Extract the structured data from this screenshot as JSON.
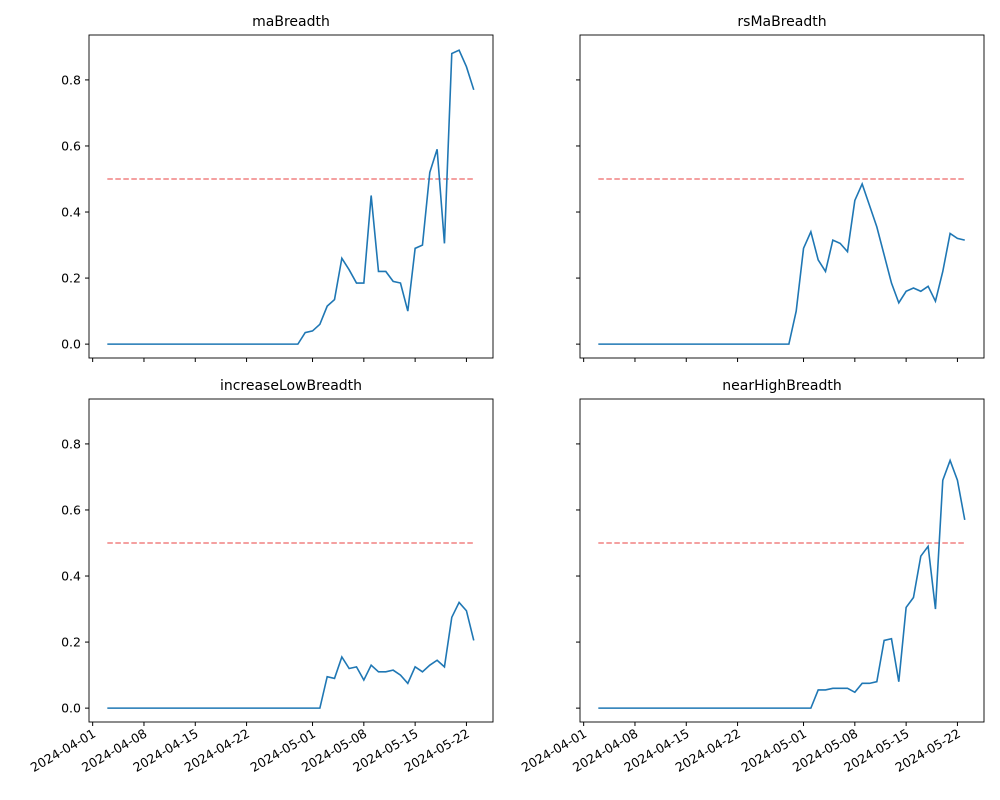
{
  "chart_data": [
    {
      "type": "line",
      "title": "maBreadth",
      "x": [
        "2024-04-03",
        "2024-04-04",
        "2024-04-05",
        "2024-04-06",
        "2024-04-07",
        "2024-04-08",
        "2024-04-09",
        "2024-04-10",
        "2024-04-11",
        "2024-04-12",
        "2024-04-13",
        "2024-04-14",
        "2024-04-15",
        "2024-04-16",
        "2024-04-17",
        "2024-04-18",
        "2024-04-19",
        "2024-04-20",
        "2024-04-21",
        "2024-04-22",
        "2024-04-23",
        "2024-04-24",
        "2024-04-25",
        "2024-04-26",
        "2024-04-27",
        "2024-04-28",
        "2024-04-29",
        "2024-04-30",
        "2024-05-01",
        "2024-05-02",
        "2024-05-03",
        "2024-05-04",
        "2024-05-05",
        "2024-05-06",
        "2024-05-07",
        "2024-05-08",
        "2024-05-09",
        "2024-05-10",
        "2024-05-11",
        "2024-05-12",
        "2024-05-13",
        "2024-05-14",
        "2024-05-15",
        "2024-05-16",
        "2024-05-17",
        "2024-05-18",
        "2024-05-19",
        "2024-05-20",
        "2024-05-21",
        "2024-05-22",
        "2024-05-23"
      ],
      "series": [
        {
          "color": "#1f77b4",
          "values": [
            0,
            0,
            0,
            0,
            0,
            0,
            0,
            0,
            0,
            0,
            0,
            0,
            0,
            0,
            0,
            0,
            0,
            0,
            0,
            0,
            0,
            0,
            0,
            0,
            0,
            0,
            0,
            0.035,
            0.04,
            0.06,
            0.115,
            0.135,
            0.26,
            0.225,
            0.185,
            0.185,
            0.45,
            0.22,
            0.22,
            0.19,
            0.185,
            0.1,
            0.29,
            0.3,
            0.52,
            0.59,
            0.305,
            0.88,
            0.89,
            0.84,
            0.77
          ]
        }
      ],
      "hline": {
        "value": 0.5,
        "color": "#f08080",
        "from": "2024-04-03",
        "to": "2024-05-23"
      },
      "xlim": [
        "2024-03-31T12:00",
        "2024-05-25T15:00"
      ],
      "xticks": [
        "2024-04-01",
        "2024-04-08",
        "2024-04-15",
        "2024-04-22",
        "2024-05-01",
        "2024-05-08",
        "2024-05-15",
        "2024-05-22"
      ],
      "ylim": [
        -0.042,
        0.936
      ],
      "yticks": [
        {
          "value": 0,
          "label": "0.0"
        },
        0.2,
        0.4,
        0.6,
        0.8
      ]
    },
    {
      "type": "line",
      "title": "rsMaBreadth",
      "x": [
        "2024-04-03",
        "2024-04-04",
        "2024-04-05",
        "2024-04-06",
        "2024-04-07",
        "2024-04-08",
        "2024-04-09",
        "2024-04-10",
        "2024-04-11",
        "2024-04-12",
        "2024-04-13",
        "2024-04-14",
        "2024-04-15",
        "2024-04-16",
        "2024-04-17",
        "2024-04-18",
        "2024-04-19",
        "2024-04-20",
        "2024-04-21",
        "2024-04-22",
        "2024-04-23",
        "2024-04-24",
        "2024-04-25",
        "2024-04-26",
        "2024-04-27",
        "2024-04-28",
        "2024-04-29",
        "2024-04-30",
        "2024-05-01",
        "2024-05-02",
        "2024-05-03",
        "2024-05-04",
        "2024-05-05",
        "2024-05-06",
        "2024-05-07",
        "2024-05-08",
        "2024-05-09",
        "2024-05-10",
        "2024-05-11",
        "2024-05-12",
        "2024-05-13",
        "2024-05-14",
        "2024-05-15",
        "2024-05-16",
        "2024-05-17",
        "2024-05-18",
        "2024-05-19",
        "2024-05-20",
        "2024-05-21",
        "2024-05-22",
        "2024-05-23"
      ],
      "series": [
        {
          "color": "#1f77b4",
          "values": [
            0,
            0,
            0,
            0,
            0,
            0,
            0,
            0,
            0,
            0,
            0,
            0,
            0,
            0,
            0,
            0,
            0,
            0,
            0,
            0,
            0,
            0,
            0,
            0,
            0,
            0,
            0,
            0.1,
            0.29,
            0.34,
            0.255,
            0.22,
            0.315,
            0.305,
            0.28,
            0.435,
            0.485,
            0.42,
            0.355,
            0.27,
            0.185,
            0.125,
            0.16,
            0.17,
            0.16,
            0.175,
            0.13,
            0.22,
            0.335,
            0.32,
            0.315
          ]
        }
      ],
      "hline": {
        "value": 0.5,
        "color": "#f08080",
        "from": "2024-04-03",
        "to": "2024-05-23"
      },
      "xlim": [
        "2024-03-31T12:00",
        "2024-05-25T15:00"
      ],
      "xticks": [
        "2024-04-01",
        "2024-04-08",
        "2024-04-15",
        "2024-04-22",
        "2024-05-01",
        "2024-05-08",
        "2024-05-15",
        "2024-05-22"
      ],
      "ylim": [
        -0.042,
        0.936
      ],
      "yticks": [
        0,
        0.2,
        0.4,
        0.6,
        0.8
      ]
    },
    {
      "type": "line",
      "title": "increaseLowBreadth",
      "x": [
        "2024-04-03",
        "2024-04-04",
        "2024-04-05",
        "2024-04-06",
        "2024-04-07",
        "2024-04-08",
        "2024-04-09",
        "2024-04-10",
        "2024-04-11",
        "2024-04-12",
        "2024-04-13",
        "2024-04-14",
        "2024-04-15",
        "2024-04-16",
        "2024-04-17",
        "2024-04-18",
        "2024-04-19",
        "2024-04-20",
        "2024-04-21",
        "2024-04-22",
        "2024-04-23",
        "2024-04-24",
        "2024-04-25",
        "2024-04-26",
        "2024-04-27",
        "2024-04-28",
        "2024-04-29",
        "2024-04-30",
        "2024-05-01",
        "2024-05-02",
        "2024-05-03",
        "2024-05-04",
        "2024-05-05",
        "2024-05-06",
        "2024-05-07",
        "2024-05-08",
        "2024-05-09",
        "2024-05-10",
        "2024-05-11",
        "2024-05-12",
        "2024-05-13",
        "2024-05-14",
        "2024-05-15",
        "2024-05-16",
        "2024-05-17",
        "2024-05-18",
        "2024-05-19",
        "2024-05-20",
        "2024-05-21",
        "2024-05-22",
        "2024-05-23"
      ],
      "series": [
        {
          "color": "#1f77b4",
          "values": [
            0,
            0,
            0,
            0,
            0,
            0,
            0,
            0,
            0,
            0,
            0,
            0,
            0,
            0,
            0,
            0,
            0,
            0,
            0,
            0,
            0,
            0,
            0,
            0,
            0,
            0,
            0,
            0,
            0,
            0,
            0.095,
            0.09,
            0.155,
            0.12,
            0.125,
            0.085,
            0.13,
            0.11,
            0.11,
            0.115,
            0.1,
            0.075,
            0.125,
            0.11,
            0.13,
            0.145,
            0.125,
            0.275,
            0.32,
            0.295,
            0.205
          ]
        }
      ],
      "hline": {
        "value": 0.5,
        "color": "#f08080",
        "from": "2024-04-03",
        "to": "2024-05-23"
      },
      "xlim": [
        "2024-03-31T12:00",
        "2024-05-25T15:00"
      ],
      "xticks": [
        "2024-04-01",
        "2024-04-08",
        "2024-04-15",
        "2024-04-22",
        "2024-05-01",
        "2024-05-08",
        "2024-05-15",
        "2024-05-22"
      ],
      "ylim": [
        -0.042,
        0.936
      ],
      "yticks": [
        {
          "value": 0,
          "label": "0.0"
        },
        0.2,
        0.4,
        0.6,
        0.8
      ]
    },
    {
      "type": "line",
      "title": "nearHighBreadth",
      "x": [
        "2024-04-03",
        "2024-04-04",
        "2024-04-05",
        "2024-04-06",
        "2024-04-07",
        "2024-04-08",
        "2024-04-09",
        "2024-04-10",
        "2024-04-11",
        "2024-04-12",
        "2024-04-13",
        "2024-04-14",
        "2024-04-15",
        "2024-04-16",
        "2024-04-17",
        "2024-04-18",
        "2024-04-19",
        "2024-04-20",
        "2024-04-21",
        "2024-04-22",
        "2024-04-23",
        "2024-04-24",
        "2024-04-25",
        "2024-04-26",
        "2024-04-27",
        "2024-04-28",
        "2024-04-29",
        "2024-04-30",
        "2024-05-01",
        "2024-05-02",
        "2024-05-03",
        "2024-05-04",
        "2024-05-05",
        "2024-05-06",
        "2024-05-07",
        "2024-05-08",
        "2024-05-09",
        "2024-05-10",
        "2024-05-11",
        "2024-05-12",
        "2024-05-13",
        "2024-05-14",
        "2024-05-15",
        "2024-05-16",
        "2024-05-17",
        "2024-05-18",
        "2024-05-19",
        "2024-05-20",
        "2024-05-21",
        "2024-05-22",
        "2024-05-23"
      ],
      "series": [
        {
          "color": "#1f77b4",
          "values": [
            0,
            0,
            0,
            0,
            0,
            0,
            0,
            0,
            0,
            0,
            0,
            0,
            0,
            0,
            0,
            0,
            0,
            0,
            0,
            0,
            0,
            0,
            0,
            0,
            0,
            0,
            0,
            0,
            0,
            0,
            0.055,
            0.055,
            0.06,
            0.06,
            0.06,
            0.048,
            0.075,
            0.075,
            0.08,
            0.205,
            0.21,
            0.08,
            0.305,
            0.335,
            0.46,
            0.49,
            0.3,
            0.69,
            0.75,
            0.69,
            0.57
          ]
        }
      ],
      "hline": {
        "value": 0.5,
        "color": "#f08080",
        "from": "2024-04-03",
        "to": "2024-05-23"
      },
      "xlim": [
        "2024-03-31T12:00",
        "2024-05-25T15:00"
      ],
      "xticks": [
        "2024-04-01",
        "2024-04-08",
        "2024-04-15",
        "2024-04-22",
        "2024-05-01",
        "2024-05-08",
        "2024-05-15",
        "2024-05-22"
      ],
      "ylim": [
        -0.042,
        0.936
      ],
      "yticks": [
        0,
        0.2,
        0.4,
        0.6,
        0.8
      ]
    }
  ]
}
